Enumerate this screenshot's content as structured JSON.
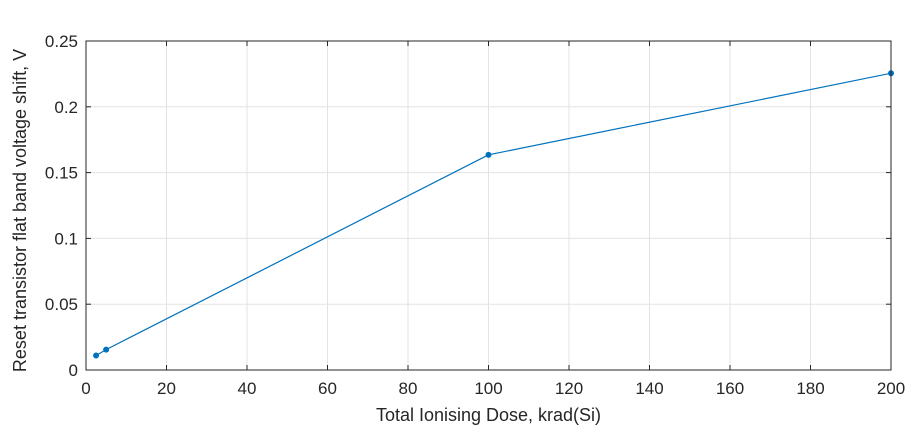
{
  "chart_data": {
    "type": "line",
    "title": "",
    "xlabel": "Total Ionising Dose, krad(Si)",
    "ylabel": "Reset transistor flat band voltage shift, V",
    "xlim": [
      0,
      200
    ],
    "ylim": [
      0,
      0.25
    ],
    "grid": true,
    "x_ticks": [
      0,
      20,
      40,
      60,
      80,
      100,
      120,
      140,
      160,
      180,
      200
    ],
    "y_ticks": [
      0,
      0.05,
      0.1,
      0.15,
      0.2,
      0.25
    ],
    "x_tick_labels": [
      "0",
      "20",
      "40",
      "60",
      "80",
      "100",
      "120",
      "140",
      "160",
      "180",
      "200"
    ],
    "y_tick_labels": [
      "0",
      "0.05",
      "0.1",
      "0.15",
      "0.2",
      "0.25"
    ],
    "series": [
      {
        "color": "#0072bd",
        "x": [
          2.5,
          5,
          100,
          200
        ],
        "y": [
          0.011,
          0.0155,
          0.1635,
          0.2255
        ]
      }
    ]
  }
}
